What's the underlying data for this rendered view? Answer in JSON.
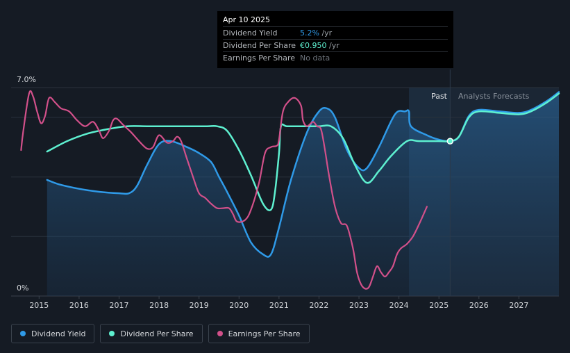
{
  "colors": {
    "dividend_yield": "#2f9ae8",
    "dividend_per_share": "#5ef0d0",
    "earnings_per_share": "#d2508a",
    "background": "#151b24",
    "forecast_bg": "#1b2634"
  },
  "tooltip": {
    "date": "Apr 10 2025",
    "rows": [
      {
        "label": "Dividend Yield",
        "value": "5.2%",
        "unit": " /yr"
      },
      {
        "label": "Dividend Per Share",
        "value": "€0.950",
        "unit": " /yr"
      },
      {
        "label": "Earnings Per Share",
        "value": "No data",
        "unit": ""
      }
    ]
  },
  "regions": {
    "past": "Past",
    "forecast": "Analysts Forecasts"
  },
  "legend": [
    {
      "label": "Dividend Yield",
      "color": "#2f9ae8"
    },
    {
      "label": "Dividend Per Share",
      "color": "#5ef0d0"
    },
    {
      "label": "Earnings Per Share",
      "color": "#d2508a"
    }
  ],
  "chart_data": {
    "type": "line",
    "title": "",
    "y_ticks": [
      "7.0%",
      "0%"
    ],
    "ylim": [
      0,
      7.0
    ],
    "x_ticks": [
      "2015",
      "2016",
      "2017",
      "2018",
      "2019",
      "2020",
      "2021",
      "2022",
      "2023",
      "2024",
      "2025",
      "2026",
      "2027"
    ],
    "xlim": [
      2014.3,
      2028.0
    ],
    "past_forecast_boundary": 2025.28,
    "shaded_past_start": 2024.25,
    "highlight": {
      "x": 2025.28,
      "y": 5.2
    },
    "series": [
      {
        "name": "Dividend Yield",
        "color": "#2f9ae8",
        "x": [
          2015.2,
          2015.5,
          2016.0,
          2016.5,
          2017.0,
          2017.25,
          2017.45,
          2017.7,
          2018.0,
          2018.3,
          2018.7,
          2019.0,
          2019.3,
          2019.5,
          2019.7,
          2020.0,
          2020.3,
          2020.6,
          2020.8,
          2021.0,
          2021.3,
          2021.7,
          2022.0,
          2022.2,
          2022.4,
          2022.7,
          2023.0,
          2023.2,
          2023.5,
          2023.9,
          2024.15,
          2024.25,
          2024.3,
          2024.7,
          2025.0,
          2025.28,
          2025.5,
          2025.75,
          2026.0,
          2026.5,
          2027.0,
          2027.3,
          2027.7,
          2028.0
        ],
        "values": [
          3.9,
          3.75,
          3.6,
          3.5,
          3.45,
          3.45,
          3.7,
          4.4,
          5.1,
          5.2,
          5.0,
          4.8,
          4.5,
          4.0,
          3.5,
          2.7,
          1.8,
          1.4,
          1.4,
          2.3,
          3.9,
          5.5,
          6.2,
          6.3,
          6.0,
          4.9,
          4.3,
          4.3,
          5.0,
          6.1,
          6.2,
          6.2,
          5.7,
          5.4,
          5.25,
          5.2,
          5.35,
          6.05,
          6.25,
          6.2,
          6.15,
          6.25,
          6.55,
          6.85
        ]
      },
      {
        "name": "Dividend Per Share",
        "color": "#5ef0d0",
        "x": [
          2015.2,
          2015.7,
          2016.2,
          2016.7,
          2017.2,
          2017.7,
          2018.2,
          2018.7,
          2019.2,
          2019.45,
          2019.7,
          2020.0,
          2020.3,
          2020.6,
          2020.8,
          2020.9,
          2021.0,
          2021.05,
          2021.2,
          2021.6,
          2022.0,
          2022.3,
          2022.6,
          2022.9,
          2023.2,
          2023.5,
          2023.8,
          2024.2,
          2024.5,
          2025.0,
          2025.28,
          2025.5,
          2025.75,
          2026.0,
          2026.5,
          2027.0,
          2027.3,
          2027.7,
          2028.0
        ],
        "values": [
          4.85,
          5.2,
          5.45,
          5.6,
          5.7,
          5.7,
          5.7,
          5.7,
          5.7,
          5.7,
          5.55,
          4.9,
          4.05,
          3.1,
          2.9,
          3.5,
          4.8,
          5.7,
          5.7,
          5.7,
          5.7,
          5.7,
          5.3,
          4.4,
          3.8,
          4.2,
          4.7,
          5.2,
          5.2,
          5.2,
          5.2,
          5.35,
          6.0,
          6.2,
          6.15,
          6.1,
          6.2,
          6.5,
          6.8
        ]
      },
      {
        "name": "Earnings Per Share",
        "color": "#d2508a",
        "x": [
          2014.55,
          2014.6,
          2014.75,
          2014.85,
          2014.95,
          2015.05,
          2015.15,
          2015.25,
          2015.4,
          2015.55,
          2015.75,
          2015.95,
          2016.15,
          2016.35,
          2016.5,
          2016.6,
          2016.75,
          2016.85,
          2016.95,
          2017.1,
          2017.3,
          2017.5,
          2017.7,
          2017.85,
          2018.0,
          2018.2,
          2018.35,
          2018.45,
          2018.55,
          2018.7,
          2018.85,
          2019.0,
          2019.15,
          2019.3,
          2019.45,
          2019.6,
          2019.75,
          2019.85,
          2019.95,
          2020.15,
          2020.3,
          2020.5,
          2020.65,
          2020.8,
          2020.95,
          2021.0,
          2021.1,
          2021.25,
          2021.4,
          2021.55,
          2021.6,
          2021.7,
          2021.85,
          2021.95,
          2022.05,
          2022.15,
          2022.25,
          2022.4,
          2022.55,
          2022.7,
          2022.85,
          2022.95,
          2023.05,
          2023.15,
          2023.25,
          2023.35,
          2023.45,
          2023.55,
          2023.65,
          2023.75,
          2023.85,
          2023.95,
          2024.05,
          2024.2,
          2024.35,
          2024.5,
          2024.7
        ],
        "values": [
          4.9,
          5.5,
          6.8,
          6.7,
          6.2,
          5.8,
          6.05,
          6.65,
          6.5,
          6.3,
          6.2,
          5.9,
          5.7,
          5.85,
          5.55,
          5.3,
          5.55,
          5.9,
          5.95,
          5.75,
          5.5,
          5.2,
          4.95,
          5.0,
          5.4,
          5.15,
          5.2,
          5.35,
          5.2,
          4.6,
          4.0,
          3.45,
          3.3,
          3.1,
          2.95,
          2.95,
          2.95,
          2.75,
          2.5,
          2.55,
          2.9,
          3.8,
          4.8,
          5.0,
          5.05,
          5.25,
          6.2,
          6.55,
          6.65,
          6.4,
          5.9,
          5.7,
          5.85,
          5.7,
          5.6,
          4.9,
          4.05,
          3.0,
          2.45,
          2.35,
          1.6,
          0.8,
          0.4,
          0.25,
          0.3,
          0.65,
          1.0,
          0.8,
          0.65,
          0.8,
          1.0,
          1.4,
          1.6,
          1.75,
          2.0,
          2.4,
          3.0
        ]
      }
    ]
  }
}
